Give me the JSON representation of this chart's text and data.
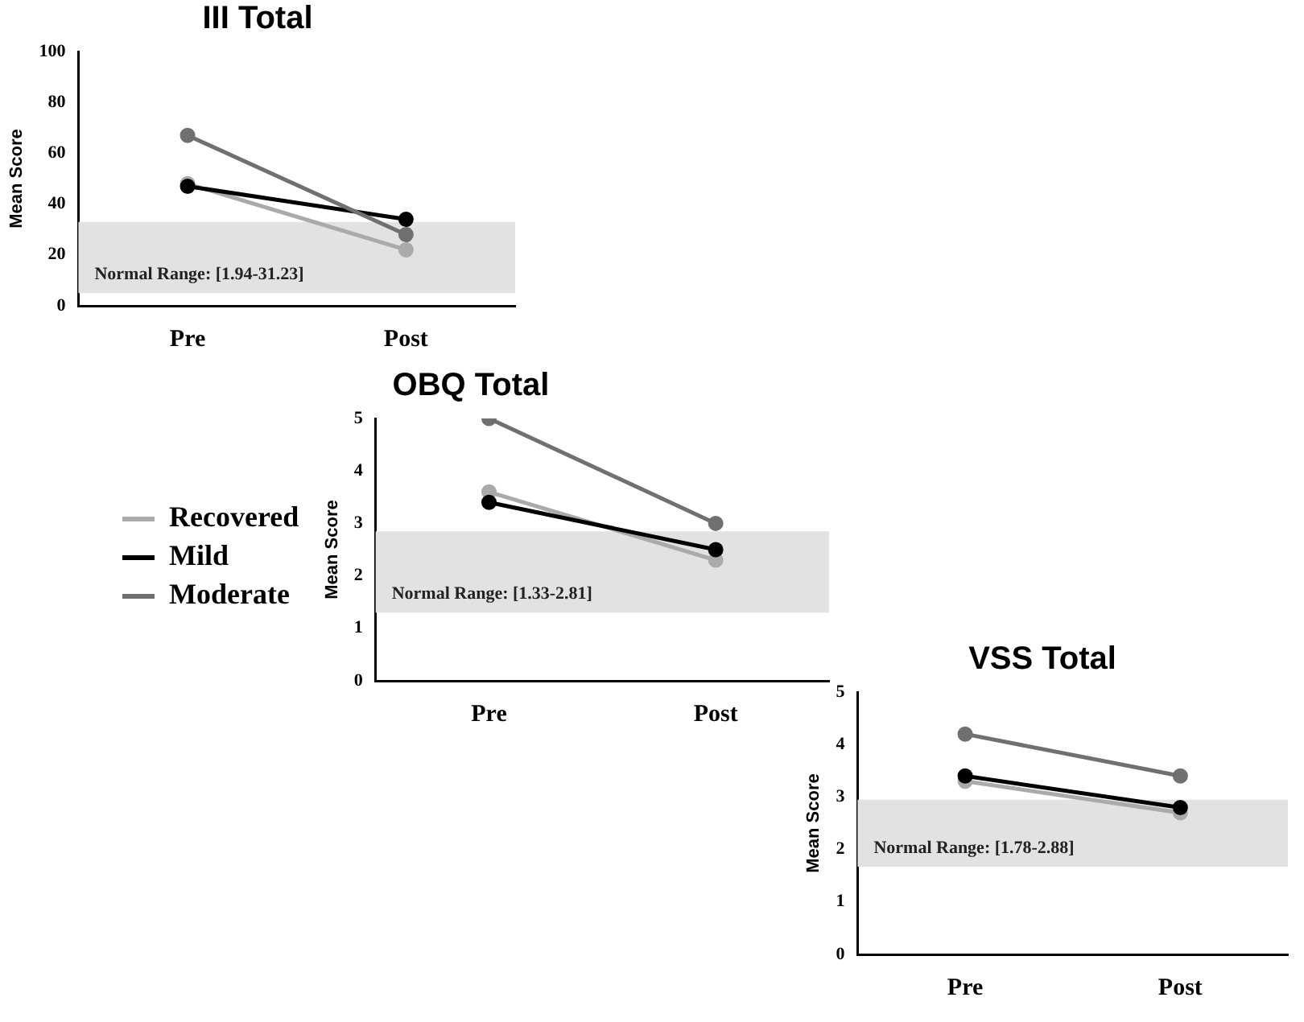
{
  "chart_data": [
    {
      "type": "line",
      "title": "III Total",
      "ylabel": "Mean Score",
      "categories": [
        "Pre",
        "Post"
      ],
      "series": [
        {
          "color": "#aaaaaa",
          "values": [
            48,
            22
          ]
        },
        {
          "color": "#000000",
          "values": [
            47,
            34
          ]
        },
        {
          "color": "#707070",
          "values": [
            67,
            28
          ]
        }
      ],
      "ylim": [
        0,
        100
      ],
      "yticks": [
        0,
        20,
        40,
        60,
        80,
        100
      ],
      "bands": [
        {
          "axis": "y",
          "from": 5,
          "to": 33,
          "label": "Normal Range: [1.94-31.23]",
          "color": "#e2e2e4"
        }
      ],
      "grid": false,
      "marker": "circle",
      "legend": false
    },
    {
      "type": "line",
      "title": "OBQ Total",
      "ylabel": "Mean Score",
      "categories": [
        "Pre",
        "Post"
      ],
      "series": [
        {
          "name": "Recovered",
          "color": "#aaaaaa",
          "values": [
            3.6,
            2.3
          ]
        },
        {
          "name": "Mild",
          "color": "#000000",
          "values": [
            3.4,
            2.5
          ]
        },
        {
          "name": "Moderate",
          "color": "#707070",
          "values": [
            5.0,
            3.0
          ]
        }
      ],
      "ylim": [
        0,
        5
      ],
      "yticks": [
        0,
        1,
        2,
        3,
        4,
        5
      ],
      "bands": [
        {
          "axis": "y",
          "from": 1.3,
          "to": 2.85,
          "label": "Normal Range: [1.33-2.81]",
          "color": "#e2e2e4"
        }
      ],
      "grid": false,
      "marker": "circle",
      "legend": "left"
    },
    {
      "type": "line",
      "title": "VSS Total",
      "ylabel": "Mean Score",
      "categories": [
        "Pre",
        "Post"
      ],
      "series": [
        {
          "color": "#aaaaaa",
          "values": [
            3.3,
            2.7
          ]
        },
        {
          "color": "#000000",
          "values": [
            3.4,
            2.8
          ]
        },
        {
          "color": "#707070",
          "values": [
            4.2,
            3.4
          ]
        }
      ],
      "ylim": [
        0,
        5
      ],
      "yticks": [
        0,
        1,
        2,
        3,
        4,
        5
      ],
      "bands": [
        {
          "axis": "y",
          "from": 1.67,
          "to": 2.95,
          "label": "Normal Range: [1.78-2.88]",
          "color": "#e2e2e4"
        }
      ],
      "grid": false,
      "marker": "circle",
      "legend": false
    }
  ]
}
